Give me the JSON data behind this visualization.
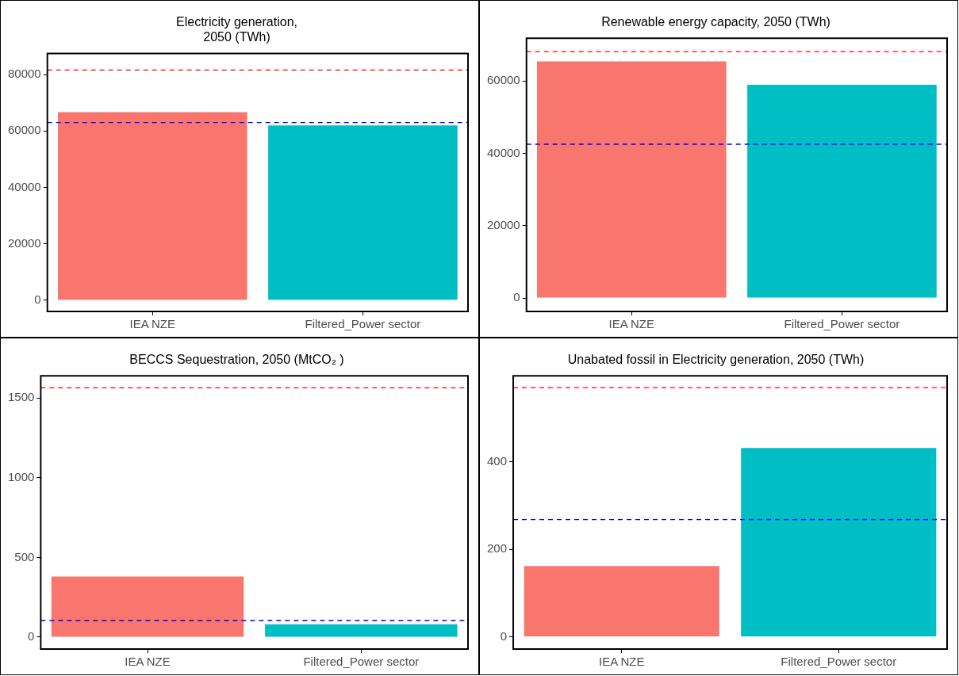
{
  "chart_data": [
    {
      "type": "bar",
      "title": "Electricity generation,\n2050 (TWh)",
      "categories": [
        "IEA NZE",
        "Filtered_Power sector"
      ],
      "values": [
        66700,
        62000
      ],
      "colors": [
        "#f8766d",
        "#00bfc4"
      ],
      "ylim": [
        -4000,
        87500
      ],
      "yticks": [
        0,
        20000,
        40000,
        60000,
        80000
      ],
      "ref_lines": [
        {
          "axis": "y",
          "value": 81600,
          "color": "#ff0000",
          "line_style": "dashed"
        },
        {
          "axis": "y",
          "value": 63000,
          "color": "#0000ff",
          "line_style": "dashed"
        }
      ]
    },
    {
      "type": "bar",
      "title": "Renewable energy capacity, 2050 (TWh)",
      "categories": [
        "IEA NZE",
        "Filtered_Power sector"
      ],
      "values": [
        65400,
        58900
      ],
      "colors": [
        "#f8766d",
        "#00bfc4"
      ],
      "ylim": [
        -3700,
        71800
      ],
      "yticks": [
        0,
        20000,
        40000,
        60000
      ],
      "ref_lines": [
        {
          "axis": "y",
          "value": 68100,
          "color": "#ff0000",
          "line_style": "dashed"
        },
        {
          "axis": "y",
          "value": 42500,
          "color": "#0000ff",
          "line_style": "dashed"
        }
      ]
    },
    {
      "type": "bar",
      "title": "BECCS Sequestration, 2050 (MtCO₂ )",
      "categories": [
        "IEA NZE",
        "Filtered_Power sector"
      ],
      "values": [
        380,
        80
      ],
      "colors": [
        "#f8766d",
        "#00bfc4"
      ],
      "ylim": [
        -75,
        1640
      ],
      "yticks": [
        0,
        500,
        1000,
        1500
      ],
      "ref_lines": [
        {
          "axis": "y",
          "value": 1565,
          "color": "#ff0000",
          "line_style": "dashed"
        },
        {
          "axis": "y",
          "value": 104,
          "color": "#0000ff",
          "line_style": "dashed"
        }
      ]
    },
    {
      "type": "bar",
      "title": "Unabated fossil in Electricity generation, 2050 (TWh)",
      "categories": [
        "IEA NZE",
        "Filtered_Power sector"
      ],
      "values": [
        162,
        432
      ],
      "colors": [
        "#f8766d",
        "#00bfc4"
      ],
      "ylim": [
        -28,
        597
      ],
      "yticks": [
        0,
        200,
        400
      ],
      "ref_lines": [
        {
          "axis": "y",
          "value": 570,
          "color": "#ff0000",
          "line_style": "dashed"
        },
        {
          "axis": "y",
          "value": 268,
          "color": "#0000ff",
          "line_style": "dashed"
        }
      ]
    }
  ]
}
